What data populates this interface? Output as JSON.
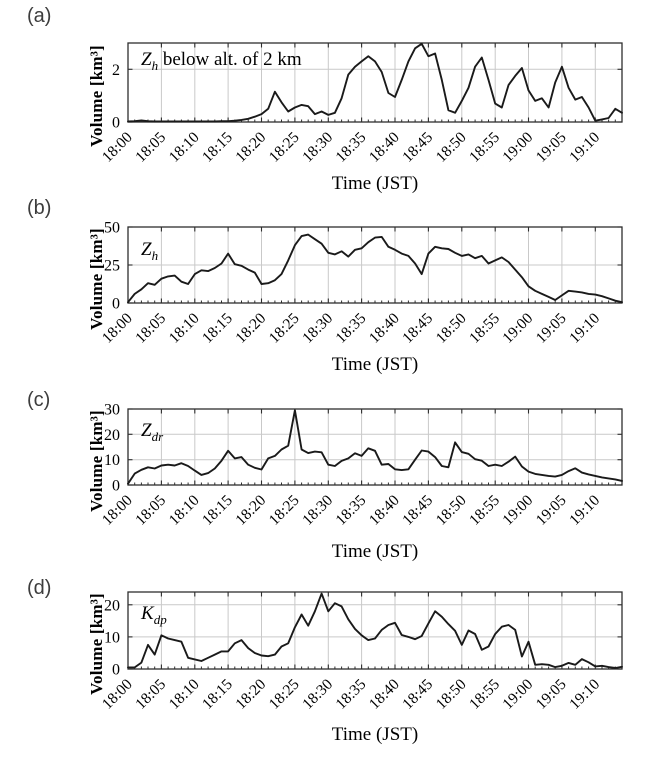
{
  "chart_data": {
    "type": "line",
    "x_label": "Time (JST)",
    "y_label": "Volume [km³]",
    "x_start": "18:00",
    "x_step_minutes": 1,
    "x_total_minutes": 74,
    "x_tick_interval_minutes": 5,
    "x_tick_labels": [
      "18:00",
      "18:05",
      "18:10",
      "18:15",
      "18:20",
      "18:25",
      "18:30",
      "18:35",
      "18:40",
      "18:45",
      "18:50",
      "18:55",
      "19:00",
      "19:05",
      "19:10"
    ],
    "grid": true,
    "legend_position": "none",
    "colors": {
      "line": "#1a1a1a",
      "grid": "#c9c9c9",
      "axis": "#2e2e2e",
      "text": "#000000",
      "panel_letter": "#3d3d3d"
    },
    "panels": [
      {
        "id": "a",
        "letter": "(a)",
        "label_main": "Z",
        "label_sub": "h",
        "label_suffix": " below alt. of 2 km",
        "ylim": [
          0,
          3
        ],
        "yticks": [
          0,
          2
        ],
        "values": [
          0.02,
          0.03,
          0.06,
          0.03,
          0.02,
          0.02,
          0.02,
          0.02,
          0.02,
          0.02,
          0.02,
          0.02,
          0.02,
          0.02,
          0.03,
          0.03,
          0.05,
          0.08,
          0.12,
          0.2,
          0.3,
          0.5,
          1.15,
          0.75,
          0.4,
          0.55,
          0.65,
          0.6,
          0.3,
          0.4,
          0.27,
          0.35,
          0.9,
          1.8,
          2.1,
          2.3,
          2.5,
          2.3,
          1.9,
          1.1,
          0.95,
          1.6,
          2.3,
          2.8,
          2.97,
          2.5,
          2.6,
          1.6,
          0.45,
          0.35,
          0.8,
          1.3,
          2.1,
          2.45,
          1.6,
          0.7,
          0.55,
          1.4,
          1.75,
          2.05,
          1.2,
          0.8,
          0.9,
          0.55,
          1.5,
          2.1,
          1.3,
          0.85,
          0.95,
          0.55,
          0.05,
          0.1,
          0.15,
          0.5,
          0.35
        ]
      },
      {
        "id": "b",
        "letter": "(b)",
        "label_main": "Z",
        "label_sub": "h",
        "label_suffix": "",
        "ylim": [
          0,
          50
        ],
        "yticks": [
          0,
          25,
          50
        ],
        "values": [
          0.5,
          6,
          9,
          13,
          12,
          16,
          17.5,
          18,
          14,
          12.5,
          19,
          21.5,
          21,
          23,
          26,
          32.5,
          25.5,
          24.5,
          22,
          20,
          12.5,
          13,
          15,
          19,
          28,
          38,
          44,
          45,
          42,
          39,
          33,
          32,
          34,
          30.5,
          35,
          36,
          40,
          43,
          43.5,
          37,
          35,
          32.5,
          31,
          26,
          19,
          32.5,
          37,
          36,
          35.5,
          33,
          31,
          32,
          29.5,
          31,
          26,
          28,
          30,
          27,
          22,
          17,
          11,
          8,
          6,
          4,
          2,
          5,
          8,
          7.5,
          7,
          6,
          5.5,
          4.5,
          3,
          1.5,
          0.5
        ]
      },
      {
        "id": "c",
        "letter": "(c)",
        "label_main": "Z",
        "label_sub": "dr",
        "label_suffix": "",
        "ylim": [
          0,
          30
        ],
        "yticks": [
          0,
          10,
          20,
          30
        ],
        "values": [
          0.5,
          4.5,
          6,
          7,
          6.5,
          7.7,
          8,
          7.7,
          8.6,
          7.5,
          5.7,
          4,
          4.7,
          6.5,
          9.6,
          13.5,
          10.5,
          11,
          8,
          6.8,
          6.1,
          10.5,
          11.5,
          14,
          15.5,
          29.5,
          14,
          12.6,
          13.2,
          12.9,
          8,
          7.5,
          9.5,
          10.5,
          12.5,
          11.5,
          14.5,
          13.5,
          8,
          8.3,
          6.2,
          5.9,
          6.2,
          10,
          13.6,
          13.2,
          11,
          7.5,
          7,
          16.8,
          13,
          12.3,
          10.2,
          9.6,
          7.5,
          8,
          7.5,
          9.2,
          11.2,
          7.3,
          5.3,
          4.4,
          4,
          3.6,
          3.3,
          4,
          5.5,
          6.6,
          4.9,
          4.2,
          3.6,
          3,
          2.6,
          2.2,
          1.6
        ]
      },
      {
        "id": "d",
        "letter": "(d)",
        "label_main": "K",
        "label_sub": "dp",
        "label_suffix": "",
        "ylim": [
          0,
          24
        ],
        "yticks": [
          0,
          10,
          20
        ],
        "values": [
          0.5,
          0.5,
          2,
          7.5,
          4.5,
          10.5,
          9.5,
          9,
          8.5,
          3.5,
          3,
          2.5,
          3.5,
          4.5,
          5.5,
          5.5,
          8,
          9,
          6.5,
          5,
          4.2,
          4,
          4.5,
          7,
          8,
          13,
          17,
          13.5,
          18,
          23.5,
          18,
          20.5,
          19.5,
          15.5,
          12.5,
          10.5,
          9,
          9.5,
          12.2,
          13.7,
          14.4,
          10.6,
          10,
          9.3,
          10.3,
          14.2,
          18,
          16.3,
          14,
          11.9,
          7.5,
          12,
          10.9,
          6,
          7,
          10.9,
          13.2,
          13.7,
          12.2,
          3.9,
          8.5,
          1.3,
          1.5,
          1.3,
          0.6,
          1,
          1.9,
          1.3,
          3.1,
          2.1,
          0.8,
          1,
          0.6,
          0.3,
          0.7
        ]
      }
    ]
  }
}
